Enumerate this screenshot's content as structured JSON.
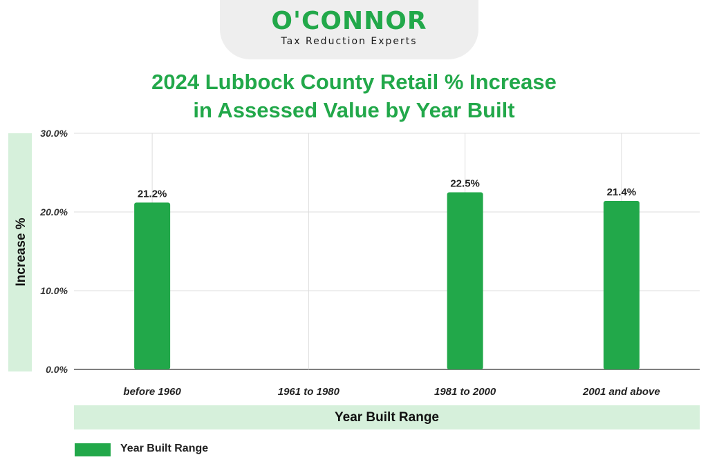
{
  "logo": {
    "name": "O'CONNOR",
    "tagline": "Tax Reduction Experts"
  },
  "colors": {
    "accent": "#22a84a",
    "label_band": "#d6f0db",
    "grid": "#dddddd"
  },
  "chart_data": {
    "type": "bar",
    "title_lines": [
      "2024 Lubbock County Retail % Increase",
      "in Assessed Value by Year Built"
    ],
    "xlabel": "Year Built Range",
    "ylabel": "Increase %",
    "categories": [
      "before 1960",
      "1961 to 1980",
      "1981 to 2000",
      "2001 and above"
    ],
    "series": [
      {
        "name": "Year Built Range",
        "values": [
          21.2,
          null,
          22.5,
          21.4
        ],
        "labels": [
          "21.2%",
          "",
          "22.5%",
          "21.4%"
        ]
      }
    ],
    "ylim": [
      0,
      30
    ],
    "yticks": [
      0,
      10,
      20,
      30
    ],
    "ytick_labels": [
      "0.0%",
      "10.0%",
      "20.0%",
      "30.0%"
    ],
    "grid": true,
    "legend": "bottom-left"
  }
}
